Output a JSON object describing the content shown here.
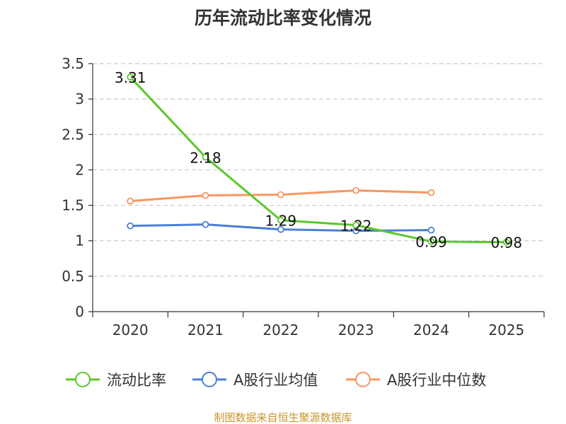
{
  "chart_data": {
    "type": "line",
    "title": "历年流动比率变化情况",
    "categories": [
      "2020",
      "2021",
      "2022",
      "2023",
      "2024",
      "2025"
    ],
    "y_ticks": [
      "0",
      "0.5",
      "1",
      "1.5",
      "2",
      "2.5",
      "3",
      "3.5"
    ],
    "ylim": [
      0,
      3.5
    ],
    "grid": true,
    "legend_position": "bottom",
    "series": [
      {
        "name": "流动比率",
        "color": "#5bc72a",
        "values": [
          3.31,
          2.18,
          1.29,
          1.22,
          0.99,
          0.98
        ],
        "labels": [
          "3.31",
          "2.18",
          "1.29",
          "1.22",
          "0.99",
          "0.98"
        ]
      },
      {
        "name": "A股行业均值",
        "color": "#4a7fd4",
        "values": [
          1.21,
          1.23,
          1.16,
          1.14,
          1.15,
          null
        ]
      },
      {
        "name": "A股行业中位数",
        "color": "#f79661",
        "values": [
          1.56,
          1.64,
          1.65,
          1.71,
          1.68,
          null
        ]
      }
    ],
    "source": "制图数据来自恒生聚源数据库"
  }
}
